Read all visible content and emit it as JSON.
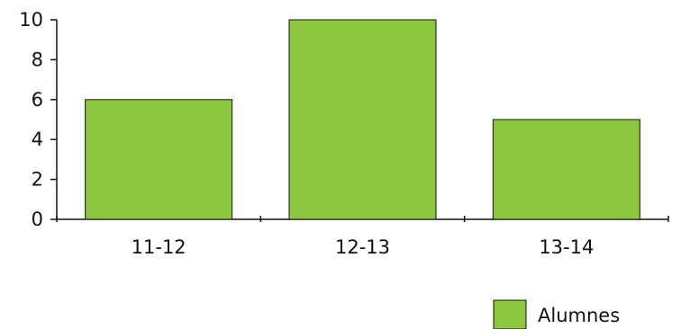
{
  "chart_data": {
    "type": "bar",
    "categories": [
      "11-12",
      "12-13",
      "13-14"
    ],
    "series": [
      {
        "name": "Alumnes",
        "values": [
          6,
          10,
          5
        ],
        "color": "#8dc63f"
      }
    ],
    "ylim": [
      0,
      10
    ],
    "yticks": [
      0,
      2,
      4,
      6,
      8,
      10
    ],
    "grid": false,
    "legend": {
      "position": "bottom-right",
      "label": "Alumnes"
    }
  }
}
